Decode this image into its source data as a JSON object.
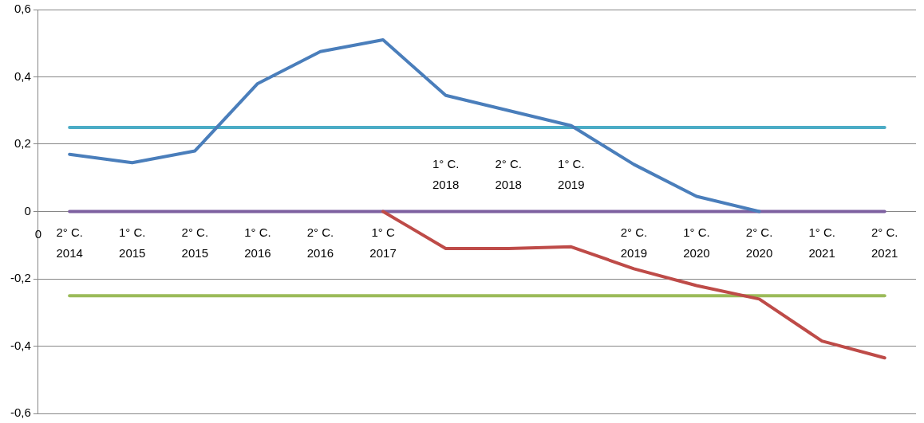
{
  "chart_data": {
    "type": "line",
    "categories": [
      "2° C. 2014",
      "1° C. 2015",
      "2° C. 2015",
      "1° C. 2016",
      "2° C. 2016",
      "1° C 2017",
      "1° C. 2018",
      "2° C. 2018",
      "1° C. 2019",
      "2° C. 2019",
      "1° C. 2020",
      "2° C. 2020",
      "1° C. 2021",
      "2° C. 2021"
    ],
    "series": [
      {
        "color": "#4a7ebb",
        "values": [
          0.17,
          0.145,
          0.18,
          0.38,
          0.475,
          0.51,
          0.345,
          0.3,
          0.255,
          0.14,
          0.045,
          0,
          null,
          null
        ]
      },
      {
        "color": "#be4b48",
        "values": [
          null,
          null,
          null,
          null,
          null,
          0,
          -0.11,
          -0.11,
          -0.105,
          -0.17,
          -0.22,
          -0.26,
          -0.385,
          -0.435
        ]
      },
      {
        "color": "#7d60a0",
        "values": [
          0,
          0,
          0,
          0,
          0,
          0,
          0,
          0,
          0,
          0,
          0,
          0,
          0,
          0
        ]
      },
      {
        "color": "#4bacc6",
        "values": [
          0.25,
          0.25,
          0.25,
          0.25,
          0.25,
          0.25,
          0.25,
          0.25,
          0.25,
          0.25,
          0.25,
          0.25,
          0.25,
          0.25
        ]
      },
      {
        "color": "#9bbb59",
        "values": [
          -0.25,
          -0.25,
          -0.25,
          -0.25,
          -0.25,
          -0.25,
          -0.25,
          -0.25,
          -0.25,
          -0.25,
          -0.25,
          -0.25,
          -0.25,
          -0.25
        ]
      }
    ],
    "ylim": [
      -0.6,
      0.6
    ],
    "yticks": [
      {
        "value": -0.6,
        "label": "-0,6"
      },
      {
        "value": -0.4,
        "label": "-0,4"
      },
      {
        "value": -0.2,
        "label": "-0,2"
      },
      0,
      {
        "value": 0.2,
        "label": "0,2"
      },
      {
        "value": 0.4,
        "label": "0,4"
      },
      {
        "value": 0.6,
        "label": "0,6"
      }
    ],
    "grid": "y",
    "legend": false,
    "marker": "none",
    "line_style": "solid",
    "annotations": [
      "0"
    ]
  }
}
